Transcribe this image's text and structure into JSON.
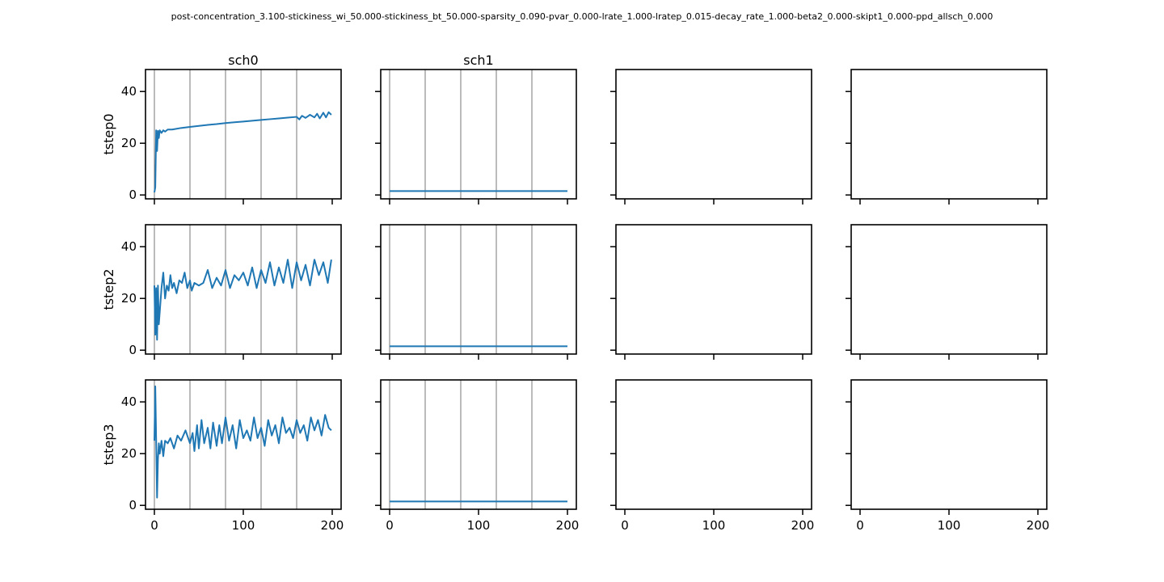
{
  "figure": {
    "suptitle": "post-concentration_3.100-stickiness_wi_50.000-stickiness_bt_50.000-sparsity_0.090-pvar_0.000-lrate_1.000-lratep_0.015-decay_rate_1.000-beta2_0.000-skipt1_0.000-ppd_allsch_0.000",
    "column_titles": [
      "sch0",
      "sch1",
      "",
      ""
    ],
    "row_labels": [
      "tstep0",
      "tstep2",
      "tstep3"
    ],
    "series_color": "#1f77b4"
  },
  "chart_data": {
    "type": "line",
    "grid": "off",
    "shared_axes": true,
    "xlim": [
      -10,
      210
    ],
    "ylim": [
      -1.5,
      48.5
    ],
    "x_ticks": [
      0,
      100,
      200
    ],
    "y_ticks": [
      0,
      20,
      40
    ],
    "vertical_lines_x": [
      0,
      40,
      80,
      120,
      160
    ],
    "panels": [
      {
        "row": 0,
        "col": 0,
        "x": [
          0,
          1,
          2,
          3,
          4,
          5,
          6,
          8,
          10,
          12,
          15,
          20,
          30,
          40,
          50,
          60,
          70,
          80,
          90,
          100,
          110,
          120,
          130,
          140,
          150,
          160,
          163,
          166,
          170,
          175,
          180,
          183,
          186,
          190,
          193,
          196,
          199
        ],
        "y": [
          1,
          3,
          25,
          17,
          24.8,
          22,
          25,
          24,
          25,
          24.5,
          25.3,
          25.3,
          25.9,
          26.3,
          26.7,
          27.1,
          27.4,
          27.8,
          28.1,
          28.4,
          28.7,
          29.0,
          29.3,
          29.6,
          29.9,
          30.2,
          29.2,
          30.6,
          29.8,
          31,
          30,
          31.4,
          29.6,
          31.8,
          30,
          32,
          31
        ]
      },
      {
        "row": 0,
        "col": 1,
        "x": [
          0,
          200
        ],
        "y": [
          1.5,
          1.5
        ]
      },
      {
        "row": 0,
        "col": 2,
        "x": [],
        "y": []
      },
      {
        "row": 0,
        "col": 3,
        "x": [],
        "y": []
      },
      {
        "row": 1,
        "col": 0,
        "x": [
          0,
          1,
          2,
          3,
          4,
          5,
          8,
          10,
          12,
          14,
          16,
          18,
          20,
          22,
          25,
          28,
          31,
          34,
          37,
          40,
          42,
          45,
          50,
          55,
          60,
          65,
          70,
          75,
          80,
          85,
          90,
          95,
          100,
          105,
          110,
          115,
          120,
          125,
          130,
          135,
          140,
          145,
          150,
          155,
          160,
          165,
          170,
          175,
          180,
          185,
          190,
          195,
          199
        ],
        "y": [
          25,
          6,
          24,
          4,
          25,
          10,
          24,
          30,
          20,
          25,
          23,
          29,
          24,
          26,
          22,
          27,
          26,
          30,
          24,
          27,
          23,
          26,
          25,
          26,
          31,
          24,
          28,
          25,
          31,
          24,
          29,
          27,
          30,
          25,
          32,
          24,
          31,
          26,
          34,
          25,
          32,
          26,
          35,
          24,
          34,
          27,
          33,
          25,
          35,
          29,
          34,
          26,
          35
        ]
      },
      {
        "row": 1,
        "col": 1,
        "x": [
          0,
          200
        ],
        "y": [
          1.5,
          1.5
        ]
      },
      {
        "row": 1,
        "col": 2,
        "x": [],
        "y": []
      },
      {
        "row": 1,
        "col": 3,
        "x": [],
        "y": []
      },
      {
        "row": 2,
        "col": 0,
        "x": [
          0,
          1,
          2,
          3,
          4,
          5,
          6,
          8,
          10,
          12,
          15,
          18,
          22,
          26,
          30,
          35,
          40,
          43,
          45,
          48,
          50,
          53,
          56,
          60,
          63,
          66,
          70,
          73,
          76,
          80,
          84,
          88,
          92,
          96,
          100,
          104,
          108,
          112,
          116,
          120,
          124,
          128,
          132,
          136,
          140,
          144,
          148,
          152,
          156,
          160,
          164,
          168,
          172,
          176,
          180,
          184,
          188,
          192,
          196,
          199
        ],
        "y": [
          25,
          46,
          25,
          3,
          18,
          24,
          20,
          25,
          19,
          25,
          24,
          26,
          22,
          27,
          25,
          29,
          24,
          28,
          21,
          31,
          22,
          33,
          24,
          30,
          22,
          32,
          23,
          31,
          24,
          34,
          25,
          31,
          22,
          33,
          26,
          29,
          25,
          34,
          26,
          30,
          23,
          33,
          27,
          31,
          24,
          34,
          28,
          30,
          26,
          33,
          28,
          31,
          25,
          34,
          29,
          33,
          27,
          35,
          30,
          29
        ]
      },
      {
        "row": 2,
        "col": 1,
        "x": [
          0,
          200
        ],
        "y": [
          1.5,
          1.5
        ]
      },
      {
        "row": 2,
        "col": 2,
        "x": [],
        "y": []
      },
      {
        "row": 2,
        "col": 3,
        "x": [],
        "y": []
      }
    ]
  }
}
